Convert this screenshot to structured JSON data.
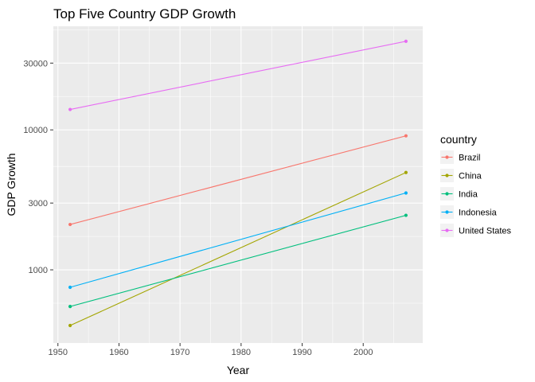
{
  "chart_data": {
    "type": "line",
    "title": "Top Five Country GDP Growth",
    "xlabel": "Year",
    "ylabel": "GDP Growth",
    "x": [
      1952,
      2007
    ],
    "xlim": [
      1949.25,
      2009.75
    ],
    "ylim": [
      300,
      55000
    ],
    "y_scale": "log10",
    "x_ticks": [
      1950,
      1960,
      1970,
      1980,
      1990,
      2000
    ],
    "y_ticks": [
      1000,
      3000,
      10000,
      30000
    ],
    "y_tick_labels": [
      "1000",
      "3000",
      "10000",
      "30000"
    ],
    "grid": true,
    "legend": {
      "title": "country",
      "position": "right"
    },
    "series": [
      {
        "name": "Brazil",
        "color": "#F8766D",
        "values": [
          2109,
          9066
        ]
      },
      {
        "name": "China",
        "color": "#A3A500",
        "values": [
          400,
          4959
        ]
      },
      {
        "name": "India",
        "color": "#00BF7D",
        "values": [
          547,
          2452
        ]
      },
      {
        "name": "Indonesia",
        "color": "#00B0F6",
        "values": [
          750,
          3541
        ]
      },
      {
        "name": "United States",
        "color": "#E76BF3",
        "values": [
          13990,
          42952
        ]
      }
    ]
  }
}
